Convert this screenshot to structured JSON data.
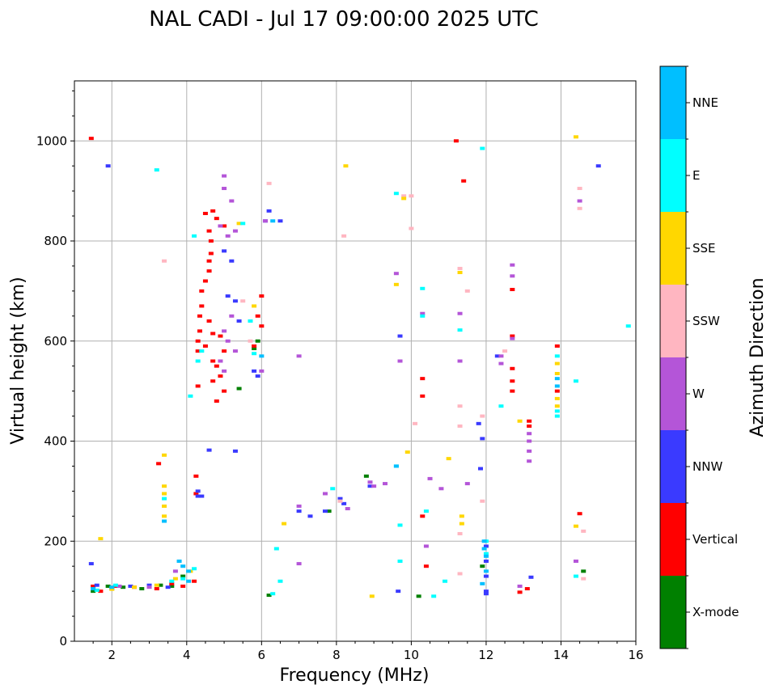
{
  "chart_data": {
    "type": "scatter",
    "title": "NAL CADI - Jul 17 09:00:00 2025 UTC",
    "xlabel": "Frequency (MHz)",
    "ylabel": "Virtual height (km)",
    "xlim": [
      1,
      16
    ],
    "ylim": [
      0,
      1120
    ],
    "xticks": [
      2,
      4,
      6,
      8,
      10,
      12,
      14,
      16
    ],
    "yticks": [
      0,
      200,
      400,
      600,
      800,
      1000
    ],
    "grid": true,
    "colorbar": {
      "label": "Azimuth Direction",
      "categories": [
        {
          "name": "X-mode",
          "color": "#008000"
        },
        {
          "name": "Vertical",
          "color": "#ff0000"
        },
        {
          "name": "NNW",
          "color": "#3a3aff"
        },
        {
          "name": "W",
          "color": "#b455d8"
        },
        {
          "name": "SSW",
          "color": "#ffb6c1"
        },
        {
          "name": "SSE",
          "color": "#ffd700"
        },
        {
          "name": "E",
          "color": "#00ffff"
        },
        {
          "name": "NNE",
          "color": "#00bfff"
        }
      ]
    },
    "series": [
      {
        "name": "X-mode",
        "points": [
          [
            1.5,
            100
          ],
          [
            1.9,
            110
          ],
          [
            2.3,
            108
          ],
          [
            2.8,
            105
          ],
          [
            3.3,
            112
          ],
          [
            3.6,
            110
          ],
          [
            3.9,
            130
          ],
          [
            5.4,
            505
          ],
          [
            5.8,
            585
          ],
          [
            5.9,
            600
          ],
          [
            6.2,
            92
          ],
          [
            7.8,
            260
          ],
          [
            8.8,
            330
          ],
          [
            10.2,
            90
          ],
          [
            11.9,
            150
          ],
          [
            14.6,
            140
          ]
        ]
      },
      {
        "name": "Vertical",
        "points": [
          [
            1.45,
            1005
          ],
          [
            1.5,
            110
          ],
          [
            1.7,
            100
          ],
          [
            2.1,
            110
          ],
          [
            2.6,
            108
          ],
          [
            3.2,
            105
          ],
          [
            3.6,
            115
          ],
          [
            3.9,
            110
          ],
          [
            4.2,
            120
          ],
          [
            3.25,
            355
          ],
          [
            4.25,
            330
          ],
          [
            4.25,
            295
          ],
          [
            4.3,
            510
          ],
          [
            4.3,
            580
          ],
          [
            4.3,
            600
          ],
          [
            4.35,
            620
          ],
          [
            4.35,
            650
          ],
          [
            4.4,
            670
          ],
          [
            4.4,
            700
          ],
          [
            4.5,
            590
          ],
          [
            4.5,
            720
          ],
          [
            4.6,
            740
          ],
          [
            4.6,
            760
          ],
          [
            4.65,
            775
          ],
          [
            4.65,
            800
          ],
          [
            4.6,
            640
          ],
          [
            4.7,
            615
          ],
          [
            4.7,
            560
          ],
          [
            4.7,
            520
          ],
          [
            4.8,
            480
          ],
          [
            4.8,
            550
          ],
          [
            4.9,
            530
          ],
          [
            4.9,
            610
          ],
          [
            5.0,
            500
          ],
          [
            5.0,
            580
          ],
          [
            4.5,
            855
          ],
          [
            4.6,
            820
          ],
          [
            4.7,
            860
          ],
          [
            4.8,
            845
          ],
          [
            5.0,
            830
          ],
          [
            5.8,
            590
          ],
          [
            5.9,
            650
          ],
          [
            6.0,
            630
          ],
          [
            6.0,
            690
          ],
          [
            10.3,
            490
          ],
          [
            10.3,
            525
          ],
          [
            10.3,
            250
          ],
          [
            10.4,
            150
          ],
          [
            11.2,
            1000
          ],
          [
            11.4,
            920
          ],
          [
            12.7,
            703
          ],
          [
            12.7,
            610
          ],
          [
            12.7,
            545
          ],
          [
            12.7,
            520
          ],
          [
            12.7,
            500
          ],
          [
            13.15,
            440
          ],
          [
            13.15,
            430
          ],
          [
            12.9,
            98
          ],
          [
            13.1,
            105
          ],
          [
            13.9,
            590
          ],
          [
            13.9,
            500
          ],
          [
            14.5,
            255
          ]
        ]
      },
      {
        "name": "NNW",
        "points": [
          [
            1.45,
            155
          ],
          [
            1.6,
            112
          ],
          [
            2.0,
            105
          ],
          [
            2.5,
            110
          ],
          [
            3.0,
            112
          ],
          [
            3.5,
            108
          ],
          [
            4.3,
            290
          ],
          [
            4.3,
            300
          ],
          [
            4.4,
            290
          ],
          [
            4.6,
            382
          ],
          [
            5.3,
            380
          ],
          [
            5.0,
            780
          ],
          [
            5.2,
            760
          ],
          [
            5.1,
            690
          ],
          [
            5.3,
            680
          ],
          [
            5.4,
            640
          ],
          [
            5.8,
            540
          ],
          [
            5.9,
            530
          ],
          [
            6.1,
            840
          ],
          [
            6.2,
            860
          ],
          [
            6.5,
            840
          ],
          [
            7.0,
            260
          ],
          [
            7.3,
            250
          ],
          [
            7.7,
            260
          ],
          [
            8.1,
            285
          ],
          [
            8.2,
            275
          ],
          [
            8.9,
            310
          ],
          [
            9.7,
            610
          ],
          [
            9.65,
            100
          ],
          [
            12.0,
            190
          ],
          [
            12.0,
            160
          ],
          [
            12.0,
            130
          ],
          [
            12.0,
            100
          ],
          [
            12.0,
            95
          ],
          [
            11.9,
            405
          ],
          [
            11.8,
            435
          ],
          [
            11.85,
            345
          ],
          [
            13.2,
            128
          ],
          [
            15.0,
            950
          ],
          [
            1.9,
            950
          ],
          [
            12.3,
            570
          ]
        ]
      },
      {
        "name": "W",
        "points": [
          [
            2.2,
            110
          ],
          [
            3.0,
            108
          ],
          [
            3.7,
            140
          ],
          [
            4.9,
            560
          ],
          [
            5.0,
            540
          ],
          [
            5.0,
            620
          ],
          [
            5.1,
            600
          ],
          [
            5.3,
            580
          ],
          [
            5.2,
            650
          ],
          [
            5.0,
            930
          ],
          [
            5.0,
            905
          ],
          [
            5.2,
            880
          ],
          [
            4.9,
            830
          ],
          [
            5.1,
            810
          ],
          [
            5.3,
            820
          ],
          [
            6.0,
            540
          ],
          [
            6.1,
            840
          ],
          [
            7.0,
            270
          ],
          [
            7.7,
            295
          ],
          [
            8.3,
            265
          ],
          [
            8.9,
            318
          ],
          [
            9.0,
            310
          ],
          [
            9.3,
            315
          ],
          [
            9.6,
            735
          ],
          [
            9.7,
            560
          ],
          [
            10.3,
            655
          ],
          [
            10.4,
            190
          ],
          [
            10.5,
            325
          ],
          [
            10.8,
            305
          ],
          [
            11.3,
            655
          ],
          [
            11.3,
            560
          ],
          [
            11.5,
            315
          ],
          [
            12.7,
            730
          ],
          [
            12.7,
            752
          ],
          [
            12.7,
            605
          ],
          [
            12.4,
            570
          ],
          [
            12.4,
            555
          ],
          [
            13.15,
            415
          ],
          [
            13.15,
            400
          ],
          [
            13.15,
            380
          ],
          [
            13.15,
            360
          ],
          [
            12.9,
            110
          ],
          [
            14.5,
            880
          ],
          [
            14.4,
            160
          ],
          [
            7.0,
            570
          ],
          [
            7.0,
            155
          ]
        ]
      },
      {
        "name": "SSW",
        "points": [
          [
            3.4,
            760
          ],
          [
            5.5,
            680
          ],
          [
            5.7,
            600
          ],
          [
            6.2,
            915
          ],
          [
            8.1,
            280
          ],
          [
            8.2,
            810
          ],
          [
            10.0,
            890
          ],
          [
            10.0,
            825
          ],
          [
            11.3,
            745
          ],
          [
            11.3,
            470
          ],
          [
            11.3,
            430
          ],
          [
            11.5,
            700
          ],
          [
            11.3,
            215
          ],
          [
            11.3,
            135
          ],
          [
            11.9,
            450
          ],
          [
            11.9,
            280
          ],
          [
            12.5,
            580
          ],
          [
            14.5,
            905
          ],
          [
            14.5,
            865
          ],
          [
            14.6,
            220
          ],
          [
            14.6,
            125
          ],
          [
            9.8,
            890
          ],
          [
            10.1,
            435
          ]
        ]
      },
      {
        "name": "SSE",
        "points": [
          [
            1.7,
            205
          ],
          [
            2.0,
            104
          ],
          [
            2.6,
            108
          ],
          [
            3.2,
            112
          ],
          [
            3.4,
            372
          ],
          [
            3.4,
            310
          ],
          [
            3.4,
            295
          ],
          [
            3.4,
            270
          ],
          [
            3.4,
            250
          ],
          [
            3.7,
            125
          ],
          [
            4.1,
            140
          ],
          [
            5.4,
            835
          ],
          [
            5.8,
            670
          ],
          [
            6.6,
            235
          ],
          [
            8.25,
            950
          ],
          [
            8.95,
            90
          ],
          [
            9.6,
            713
          ],
          [
            9.8,
            885
          ],
          [
            9.9,
            378
          ],
          [
            11.0,
            365
          ],
          [
            11.3,
            737
          ],
          [
            11.35,
            250
          ],
          [
            11.35,
            235
          ],
          [
            12.9,
            440
          ],
          [
            13.9,
            555
          ],
          [
            13.9,
            535
          ],
          [
            13.9,
            485
          ],
          [
            13.9,
            470
          ],
          [
            14.4,
            230
          ],
          [
            14.4,
            1008
          ]
        ]
      },
      {
        "name": "E",
        "points": [
          [
            1.6,
            102
          ],
          [
            2.1,
            112
          ],
          [
            3.4,
            285
          ],
          [
            3.6,
            120
          ],
          [
            3.9,
            125
          ],
          [
            4.2,
            145
          ],
          [
            4.2,
            810
          ],
          [
            4.3,
            560
          ],
          [
            4.4,
            580
          ],
          [
            5.5,
            835
          ],
          [
            5.7,
            640
          ],
          [
            5.8,
            575
          ],
          [
            6.4,
            185
          ],
          [
            6.3,
            95
          ],
          [
            6.5,
            120
          ],
          [
            7.9,
            305
          ],
          [
            9.6,
            895
          ],
          [
            9.6,
            350
          ],
          [
            9.7,
            232
          ],
          [
            9.7,
            160
          ],
          [
            10.3,
            705
          ],
          [
            10.3,
            650
          ],
          [
            10.4,
            260
          ],
          [
            10.6,
            90
          ],
          [
            10.9,
            120
          ],
          [
            11.3,
            622
          ],
          [
            11.9,
            985
          ],
          [
            12.0,
            200
          ],
          [
            12.0,
            175
          ],
          [
            12.4,
            470
          ],
          [
            13.9,
            570
          ],
          [
            13.9,
            460
          ],
          [
            13.9,
            450
          ],
          [
            14.4,
            520
          ],
          [
            14.4,
            130
          ],
          [
            15.8,
            630
          ],
          [
            3.2,
            942
          ],
          [
            4.1,
            490
          ]
        ]
      },
      {
        "name": "NNE",
        "points": [
          [
            1.5,
            105
          ],
          [
            2.0,
            108
          ],
          [
            3.8,
            160
          ],
          [
            3.9,
            150
          ],
          [
            4.05,
            140
          ],
          [
            4.05,
            120
          ],
          [
            6.0,
            570
          ],
          [
            6.3,
            840
          ],
          [
            9.6,
            350
          ],
          [
            11.95,
            200
          ],
          [
            11.95,
            185
          ],
          [
            12.0,
            170
          ],
          [
            11.9,
            115
          ],
          [
            12.0,
            140
          ],
          [
            13.9,
            525
          ],
          [
            13.9,
            510
          ],
          [
            3.4,
            240
          ]
        ]
      }
    ]
  }
}
